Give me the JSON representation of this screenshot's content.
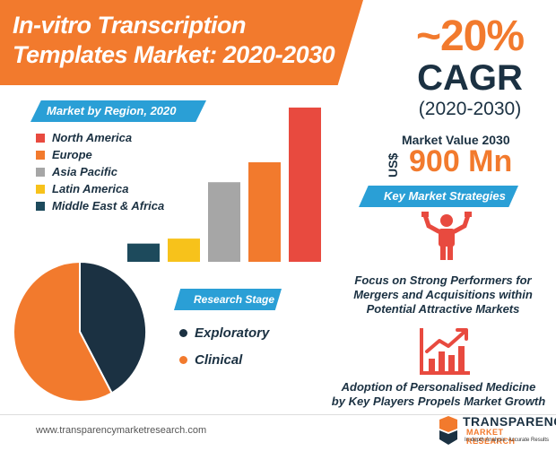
{
  "title": {
    "line1": "In-vitro Transcription",
    "line2": "Templates Market: 2020-2030"
  },
  "cagr": {
    "value": "~20%",
    "label": "CAGR",
    "period": "(2020-2030)"
  },
  "market_value": {
    "label": "Market Value 2030",
    "currency": "US$",
    "value": "900 Mn"
  },
  "region_section": {
    "title": "Market by Region, 2020"
  },
  "strategies_section": {
    "title": "Key Market Strategies"
  },
  "strategies": [
    {
      "icon": "strongman-icon",
      "text_line1": "Focus on Strong Performers for",
      "text_line2": "Mergers and Acquisitions within",
      "text_line3": "Potential Attractive Markets"
    },
    {
      "icon": "growth-chart-icon",
      "text_line1": "Adoption of Personalised Medicine",
      "text_line2": "by Key Players Propels Market Growth"
    }
  ],
  "stage_section": {
    "title": "Research Stage"
  },
  "footer": {
    "url": "www.transparencymarketresearch.com"
  },
  "logo": {
    "line1": "TRANSPARENCY",
    "line2": "MARKET RESEARCH",
    "line3": "In-depth Analysis. Accurate Results"
  },
  "colors": {
    "accent": "#f27a2d",
    "navy": "#1b3142",
    "ribbon": "#2a9fd6",
    "red": "#e84a3f",
    "gray": "#a6a6a6",
    "yellow": "#f7c21b"
  },
  "chart_data": [
    {
      "type": "bar",
      "categories": [
        "Middle East & Africa",
        "Latin America",
        "Asia Pacific",
        "Europe",
        "North America"
      ],
      "values": [
        11,
        14,
        48,
        60,
        93
      ],
      "colors": [
        "#1d4a5c",
        "#f7c21b",
        "#a6a6a6",
        "#f27a2d",
        "#e84a3f"
      ],
      "legend": [
        "North America",
        "Europe",
        "Asia Pacific",
        "Latin America",
        "Middle East & Africa"
      ],
      "legend_colors": [
        "#e84a3f",
        "#f27a2d",
        "#a6a6a6",
        "#f7c21b",
        "#1d4a5c"
      ],
      "ylim": [
        0,
        100
      ]
    },
    {
      "type": "pie",
      "labels": [
        "Exploratory",
        "Clinical"
      ],
      "values": [
        42,
        58
      ],
      "colors": [
        "#1b3142",
        "#f27a2d"
      ]
    }
  ]
}
